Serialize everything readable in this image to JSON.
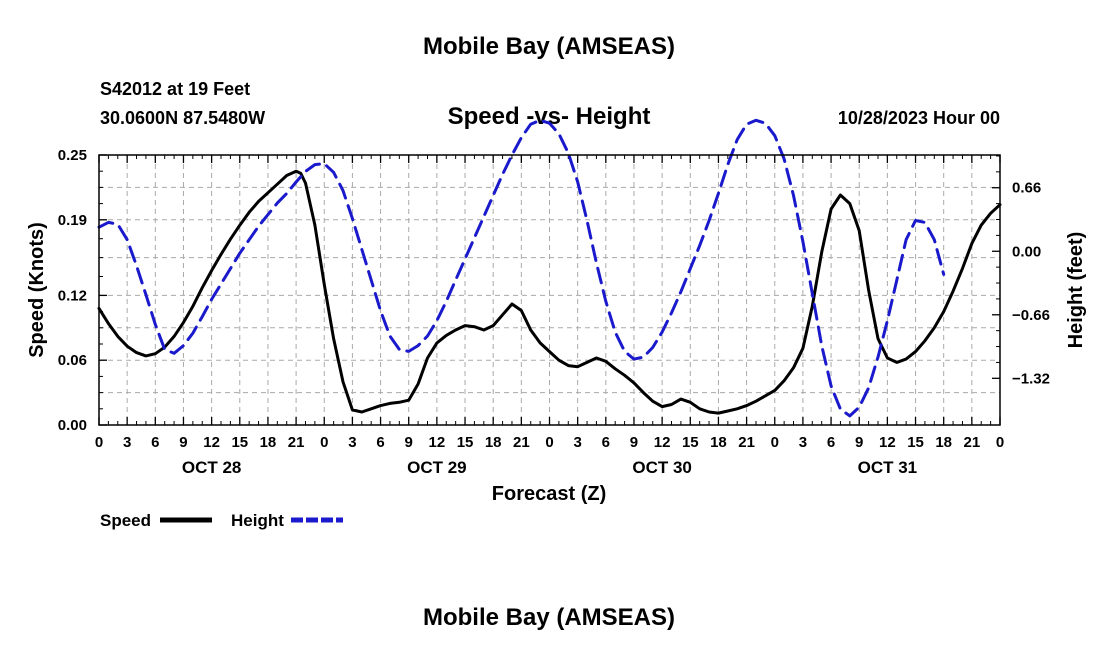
{
  "chart_data": {
    "type": "line",
    "title": "Mobile Bay (AMSEAS)",
    "subtitle": "Speed -vs- Height",
    "station": "S42012 at 19 Feet",
    "coordinates": "30.0600N  87.5480W",
    "run_time": "10/28/2023 Hour 00",
    "xlabel": "Forecast (Z)",
    "ylabel_left": "Speed (Knots)",
    "ylabel_right": "Height (feet)",
    "x_unit": "hours since 10/28/2023 00Z",
    "xlim": [
      0,
      96
    ],
    "ylim_left": [
      0,
      0.25
    ],
    "ylim_right": [
      -1.805,
      1.0
    ],
    "yticks_left": [
      0.0,
      0.06,
      0.12,
      0.19,
      0.25
    ],
    "ytick_labels_left": [
      "0.00",
      "0.06",
      "0.12",
      "0.19",
      "0.25"
    ],
    "yticks_right": [
      -1.32,
      -0.66,
      0.0,
      0.66
    ],
    "ytick_labels_right": [
      "−1.32",
      "−0.66",
      "0.00",
      "0.66"
    ],
    "xticks": [
      0,
      3,
      6,
      9,
      12,
      15,
      18,
      21,
      24,
      27,
      30,
      33,
      36,
      39,
      42,
      45,
      48,
      51,
      54,
      57,
      60,
      63,
      66,
      69,
      72,
      75,
      78,
      81,
      84,
      87,
      90,
      93,
      96
    ],
    "xtick_labels": [
      "0",
      "3",
      "6",
      "9",
      "12",
      "15",
      "18",
      "21",
      "0",
      "3",
      "6",
      "9",
      "12",
      "15",
      "18",
      "21",
      "0",
      "3",
      "6",
      "9",
      "12",
      "15",
      "18",
      "21",
      "0",
      "3",
      "6",
      "9",
      "12",
      "15",
      "18",
      "21",
      "0"
    ],
    "date_labels": [
      {
        "x": 12,
        "label": "OCT 28"
      },
      {
        "x": 36,
        "label": "OCT 29"
      },
      {
        "x": 60,
        "label": "OCT 30"
      },
      {
        "x": 84,
        "label": "OCT 31"
      }
    ],
    "grid": true,
    "legend_position": "bottom-left",
    "series": [
      {
        "name": "Speed",
        "axis": "left",
        "color": "#000000",
        "dash": "solid",
        "points": [
          [
            0,
            0.108
          ],
          [
            1,
            0.094
          ],
          [
            2,
            0.082
          ],
          [
            3,
            0.073
          ],
          [
            4,
            0.067
          ],
          [
            5,
            0.064
          ],
          [
            6,
            0.066
          ],
          [
            7,
            0.072
          ],
          [
            8,
            0.082
          ],
          [
            9,
            0.095
          ],
          [
            10,
            0.11
          ],
          [
            11,
            0.127
          ],
          [
            12,
            0.143
          ],
          [
            13,
            0.158
          ],
          [
            14,
            0.172
          ],
          [
            15,
            0.185
          ],
          [
            16,
            0.197
          ],
          [
            17,
            0.207
          ],
          [
            18,
            0.215
          ],
          [
            19,
            0.223
          ],
          [
            20,
            0.231
          ],
          [
            21,
            0.235
          ],
          [
            21.5,
            0.233
          ],
          [
            22,
            0.224
          ],
          [
            23,
            0.185
          ],
          [
            24,
            0.13
          ],
          [
            25,
            0.08
          ],
          [
            26,
            0.04
          ],
          [
            27,
            0.014
          ],
          [
            28,
            0.012
          ],
          [
            29,
            0.015
          ],
          [
            30,
            0.018
          ],
          [
            31,
            0.02
          ],
          [
            32,
            0.021
          ],
          [
            33,
            0.023
          ],
          [
            34,
            0.038
          ],
          [
            35,
            0.062
          ],
          [
            36,
            0.076
          ],
          [
            37,
            0.083
          ],
          [
            38,
            0.088
          ],
          [
            39,
            0.092
          ],
          [
            40,
            0.091
          ],
          [
            41,
            0.088
          ],
          [
            42,
            0.092
          ],
          [
            43,
            0.102
          ],
          [
            44,
            0.112
          ],
          [
            45,
            0.106
          ],
          [
            46,
            0.088
          ],
          [
            47,
            0.076
          ],
          [
            48,
            0.068
          ],
          [
            49,
            0.06
          ],
          [
            50,
            0.055
          ],
          [
            51,
            0.054
          ],
          [
            52,
            0.058
          ],
          [
            53,
            0.062
          ],
          [
            54,
            0.059
          ],
          [
            55,
            0.052
          ],
          [
            56,
            0.046
          ],
          [
            57,
            0.039
          ],
          [
            58,
            0.03
          ],
          [
            59,
            0.022
          ],
          [
            60,
            0.017
          ],
          [
            61,
            0.019
          ],
          [
            62,
            0.024
          ],
          [
            63,
            0.021
          ],
          [
            64,
            0.015
          ],
          [
            65,
            0.012
          ],
          [
            66,
            0.011
          ],
          [
            67,
            0.013
          ],
          [
            68,
            0.015
          ],
          [
            69,
            0.018
          ],
          [
            70,
            0.022
          ],
          [
            71,
            0.027
          ],
          [
            72,
            0.032
          ],
          [
            73,
            0.041
          ],
          [
            74,
            0.053
          ],
          [
            75,
            0.071
          ],
          [
            76,
            0.11
          ],
          [
            77,
            0.16
          ],
          [
            78,
            0.2
          ],
          [
            79,
            0.213
          ],
          [
            80,
            0.205
          ],
          [
            81,
            0.18
          ],
          [
            82,
            0.125
          ],
          [
            83,
            0.08
          ],
          [
            84,
            0.062
          ],
          [
            85,
            0.058
          ],
          [
            86,
            0.061
          ],
          [
            87,
            0.068
          ],
          [
            88,
            0.078
          ],
          [
            89,
            0.09
          ],
          [
            90,
            0.105
          ],
          [
            91,
            0.124
          ],
          [
            92,
            0.145
          ],
          [
            93,
            0.168
          ],
          [
            94,
            0.185
          ],
          [
            95,
            0.196
          ],
          [
            96,
            0.204
          ]
        ]
      },
      {
        "name": "Height",
        "axis": "right",
        "color": "#1a1acc",
        "dash": "dashed",
        "points": [
          [
            0,
            0.25
          ],
          [
            1,
            0.3
          ],
          [
            2,
            0.28
          ],
          [
            3,
            0.12
          ],
          [
            4,
            -0.15
          ],
          [
            5,
            -0.45
          ],
          [
            6,
            -0.76
          ],
          [
            7,
            -1.02
          ],
          [
            8,
            -1.06
          ],
          [
            9,
            -0.98
          ],
          [
            10,
            -0.85
          ],
          [
            11,
            -0.68
          ],
          [
            12,
            -0.5
          ],
          [
            13,
            -0.34
          ],
          [
            14,
            -0.18
          ],
          [
            15,
            -0.02
          ],
          [
            16,
            0.12
          ],
          [
            17,
            0.26
          ],
          [
            18,
            0.38
          ],
          [
            19,
            0.5
          ],
          [
            20,
            0.6
          ],
          [
            21,
            0.72
          ],
          [
            22,
            0.83
          ],
          [
            23,
            0.9
          ],
          [
            24,
            0.91
          ],
          [
            25,
            0.82
          ],
          [
            26,
            0.63
          ],
          [
            27,
            0.34
          ],
          [
            28,
            0.02
          ],
          [
            29,
            -0.3
          ],
          [
            30,
            -0.62
          ],
          [
            31,
            -0.88
          ],
          [
            32,
            -1.02
          ],
          [
            33,
            -1.04
          ],
          [
            34,
            -0.98
          ],
          [
            35,
            -0.88
          ],
          [
            36,
            -0.72
          ],
          [
            37,
            -0.52
          ],
          [
            38,
            -0.3
          ],
          [
            39,
            -0.08
          ],
          [
            40,
            0.14
          ],
          [
            41,
            0.36
          ],
          [
            42,
            0.58
          ],
          [
            43,
            0.8
          ],
          [
            44,
            1.0
          ],
          [
            45,
            1.18
          ],
          [
            46,
            1.32
          ],
          [
            47,
            1.36
          ],
          [
            48,
            1.33
          ],
          [
            49,
            1.22
          ],
          [
            50,
            1.02
          ],
          [
            51,
            0.72
          ],
          [
            52,
            0.32
          ],
          [
            53,
            -0.12
          ],
          [
            54,
            -0.52
          ],
          [
            55,
            -0.84
          ],
          [
            56,
            -1.04
          ],
          [
            57,
            -1.12
          ],
          [
            58,
            -1.1
          ],
          [
            59,
            -1.0
          ],
          [
            60,
            -0.84
          ],
          [
            61,
            -0.64
          ],
          [
            62,
            -0.42
          ],
          [
            63,
            -0.18
          ],
          [
            64,
            0.06
          ],
          [
            65,
            0.32
          ],
          [
            66,
            0.6
          ],
          [
            67,
            0.9
          ],
          [
            68,
            1.16
          ],
          [
            69,
            1.32
          ],
          [
            70,
            1.36
          ],
          [
            71,
            1.33
          ],
          [
            72,
            1.2
          ],
          [
            73,
            0.96
          ],
          [
            74,
            0.58
          ],
          [
            75,
            0.1
          ],
          [
            76,
            -0.44
          ],
          [
            77,
            -0.98
          ],
          [
            78,
            -1.4
          ],
          [
            79,
            -1.64
          ],
          [
            80,
            -1.71
          ],
          [
            81,
            -1.62
          ],
          [
            82,
            -1.42
          ],
          [
            83,
            -1.1
          ],
          [
            84,
            -0.72
          ],
          [
            85,
            -0.3
          ],
          [
            86,
            0.12
          ],
          [
            87,
            0.32
          ],
          [
            88,
            0.3
          ],
          [
            89,
            0.12
          ],
          [
            90,
            -0.24
          ]
        ]
      }
    ],
    "legend": [
      {
        "label": "Speed",
        "color": "#000000",
        "dash": "solid"
      },
      {
        "label": "Height",
        "color": "#1a1acc",
        "dash": "dashed"
      }
    ],
    "footer_title": "Mobile Bay (AMSEAS)"
  }
}
